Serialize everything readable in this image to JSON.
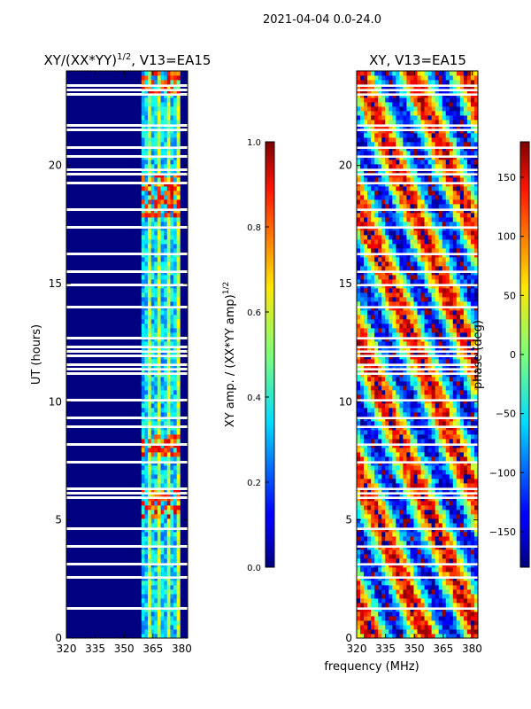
{
  "suptitle": "2021-04-04 0.0-24.0",
  "shared_xlabel": "frequency (MHz)",
  "colors": {
    "background": "#000080",
    "gap": "#ffffff"
  },
  "chart_data": [
    {
      "type": "heatmap",
      "title_main": "XY/(XX*YY)",
      "title_exp": "1/2",
      "title_rest": ", V13=EA15",
      "xlabel": "",
      "ylabel": "UT (hours)",
      "xlim": [
        320,
        383
      ],
      "ylim": [
        0,
        24
      ],
      "xticks": [
        320,
        335,
        350,
        365,
        380
      ],
      "yticks": [
        0,
        5,
        10,
        15,
        20
      ],
      "colorbar": {
        "label_main": "XY amp. / (XX*YY amp)",
        "label_exp": "1/2",
        "range": [
          0.0,
          1.0
        ],
        "ticks": [
          "0.0",
          "0.2",
          "0.4",
          "0.6",
          "0.8",
          "1.0"
        ],
        "colormap": "jet"
      },
      "active_band_mhz": [
        359,
        379
      ]
    },
    {
      "type": "heatmap",
      "title_main": "XY, V13=EA15",
      "xlabel": "",
      "ylabel": "",
      "xlim": [
        320,
        383
      ],
      "ylim": [
        0,
        24
      ],
      "xticks": [
        320,
        335,
        350,
        365,
        380
      ],
      "yticks": [
        0,
        5,
        10,
        15,
        20
      ],
      "colorbar": {
        "label_main": "phase (deg)",
        "range": [
          -180,
          180
        ],
        "ticks": [
          "−150",
          "−100",
          "−50",
          "0",
          "50",
          "100",
          "150"
        ],
        "tick_values": [
          -150,
          -100,
          -50,
          0,
          50,
          100,
          150
        ],
        "colormap": "jet"
      }
    }
  ]
}
